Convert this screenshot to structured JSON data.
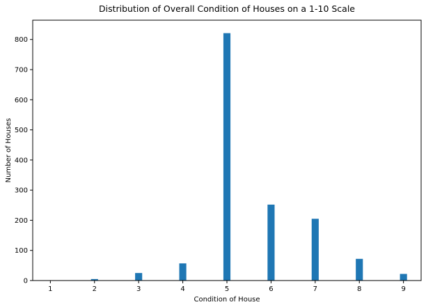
{
  "chart_data": {
    "type": "bar",
    "title": "Distribution of Overall Condition of Houses on a 1-10 Scale",
    "xlabel": "Condition of House",
    "ylabel": "Number of Houses",
    "bar_color": "#1f77b4",
    "x_ticks": [
      1,
      2,
      3,
      4,
      5,
      6,
      7,
      8,
      9
    ],
    "y_ticks": [
      0,
      100,
      200,
      300,
      400,
      500,
      600,
      700,
      800
    ],
    "xlim": [
      0.6,
      9.4
    ],
    "ylim": [
      0,
      864
    ],
    "grid": false,
    "categories": [
      1,
      2,
      3,
      4,
      5,
      6,
      7,
      8,
      9
    ],
    "values": [
      1,
      5,
      25,
      57,
      821,
      252,
      205,
      72,
      22
    ]
  }
}
